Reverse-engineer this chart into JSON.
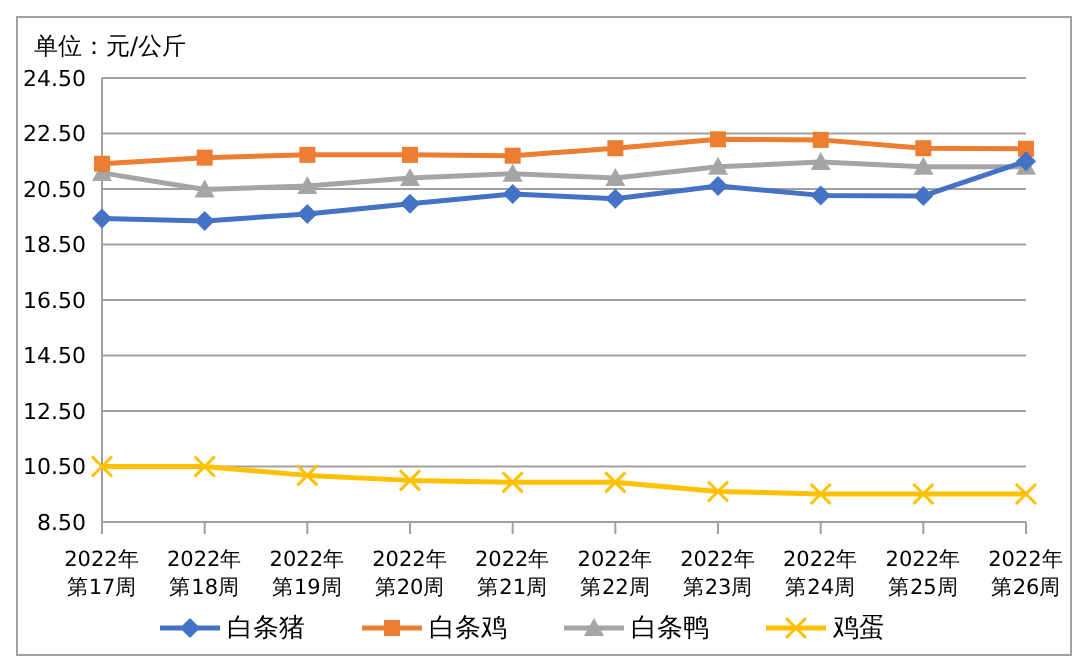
{
  "chart_data": {
    "type": "line",
    "title": "单位：元/公斤",
    "categories": [
      "2022年第17周",
      "2022年第18周",
      "2022年第19周",
      "2022年第20周",
      "2022年第21周",
      "2022年第22周",
      "2022年第23周",
      "2022年第24周",
      "2022年第25周",
      "2022年第26周"
    ],
    "series": [
      {
        "name": "白条猪",
        "color": "#4472c4",
        "marker": "diamond",
        "values": [
          19.44,
          19.35,
          19.6,
          19.97,
          20.32,
          20.15,
          20.61,
          20.27,
          20.25,
          21.5
        ]
      },
      {
        "name": "白条鸡",
        "color": "#ed7d31",
        "marker": "square",
        "values": [
          21.41,
          21.63,
          21.73,
          21.73,
          21.7,
          21.97,
          22.29,
          22.27,
          21.97,
          21.95
        ]
      },
      {
        "name": "白条鸭",
        "color": "#a5a5a5",
        "marker": "triangle",
        "values": [
          21.08,
          20.48,
          20.61,
          20.9,
          21.05,
          20.9,
          21.3,
          21.47,
          21.3,
          21.3
        ]
      },
      {
        "name": "鸡蛋",
        "color": "#ffc000",
        "marker": "cross",
        "values": [
          10.5,
          10.5,
          10.18,
          10.0,
          9.93,
          9.93,
          9.6,
          9.51,
          9.51,
          9.51
        ]
      }
    ],
    "ylim": [
      8.5,
      24.5
    ],
    "yticks": [
      {
        "value": 8.5,
        "label": "8.50"
      },
      {
        "value": 10.5,
        "label": "10.50"
      },
      {
        "value": 12.5,
        "label": "12.50"
      },
      {
        "value": 14.5,
        "label": "14.50"
      },
      {
        "value": 16.5,
        "label": "16.50"
      },
      {
        "value": 18.5,
        "label": "18.50"
      },
      {
        "value": 20.5,
        "label": "20.50"
      },
      {
        "value": 22.5,
        "label": "22.50"
      },
      {
        "value": 24.5,
        "label": "24.50"
      }
    ],
    "grid": "y",
    "legend": "bottom",
    "line_style": "solid"
  }
}
